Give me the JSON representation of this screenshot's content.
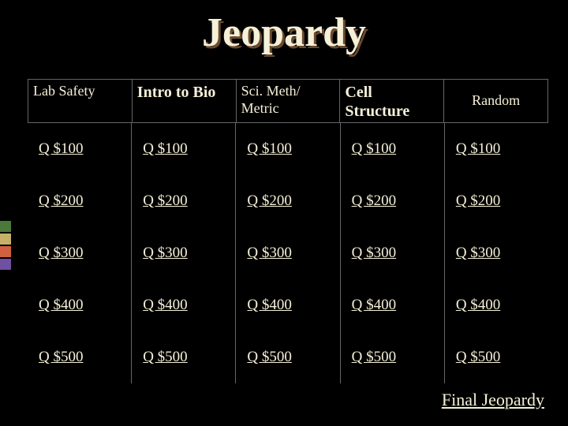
{
  "title": "Jeopardy",
  "background_color": "#000000",
  "text_color": "#f5f0d8",
  "title_fontsize": 52,
  "title_shadow_color": "#6b4a2d",
  "categories": [
    {
      "label": "Lab Safety",
      "bold": false
    },
    {
      "label": "Intro to Bio",
      "bold": true
    },
    {
      "label": "Sci. Meth/ Metric",
      "bold": false
    },
    {
      "label": "Cell Structure",
      "bold": true
    },
    {
      "label": "Random",
      "bold": false
    }
  ],
  "values": [
    "Q $100",
    "Q $200",
    "Q $300",
    "Q $400",
    "Q $500"
  ],
  "final_label": "Final Jeopardy",
  "sidebar_colors": [
    "#4a7a3a",
    "#c4b068",
    "#d06040",
    "#7050a0"
  ],
  "grid_border_color": "#666666",
  "category_fontsize": 18,
  "value_fontsize": 19
}
